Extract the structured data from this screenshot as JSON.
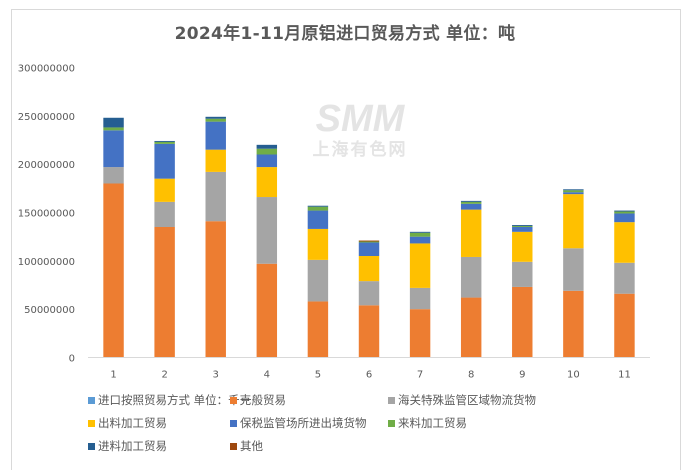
{
  "chart_data": {
    "type": "bar",
    "stacked": true,
    "title": "2024年1-11月原铝进口贸易方式 单位：吨",
    "watermark": {
      "en": "SMM",
      "cn": "上海有色网"
    },
    "xlabel": "",
    "ylabel": "",
    "ylim": [
      0,
      300000000
    ],
    "yticks": [
      0,
      50000000,
      100000000,
      150000000,
      200000000,
      250000000,
      300000000
    ],
    "ytick_labels": [
      "0",
      "50000000",
      "100000000",
      "150000000",
      "200000000",
      "250000000",
      "300000000"
    ],
    "grid": false,
    "legend_position": "bottom",
    "categories": [
      "1",
      "2",
      "3",
      "4",
      "5",
      "6",
      "7",
      "8",
      "9",
      "10",
      "11"
    ],
    "series": [
      {
        "name": "进口按照贸易方式 单位：千克",
        "color": "#5b9bd5",
        "values": [
          0,
          0,
          0,
          0,
          0,
          0,
          0,
          0,
          0,
          0,
          0
        ]
      },
      {
        "name": "一般贸易",
        "color": "#ed7d31",
        "values": [
          180000000,
          135000000,
          141000000,
          97000000,
          58000000,
          54000000,
          50000000,
          62000000,
          73000000,
          69000000,
          66000000
        ]
      },
      {
        "name": "海关特殊监管区域物流货物",
        "color": "#a5a5a5",
        "values": [
          17000000,
          26000000,
          51000000,
          69000000,
          43000000,
          25000000,
          22000000,
          42000000,
          26000000,
          44000000,
          32000000
        ]
      },
      {
        "name": "出料加工贸易",
        "color": "#ffc000",
        "values": [
          0,
          24000000,
          23000000,
          31000000,
          32000000,
          26000000,
          46000000,
          49000000,
          31000000,
          56000000,
          42000000
        ]
      },
      {
        "name": "保税监管场所进出境货物",
        "color": "#4472c4",
        "values": [
          38000000,
          36000000,
          29000000,
          13000000,
          19000000,
          14000000,
          7000000,
          6000000,
          5000000,
          2000000,
          9000000
        ]
      },
      {
        "name": "来料加工贸易",
        "color": "#70ad47",
        "values": [
          3000000,
          2000000,
          3000000,
          6000000,
          4000000,
          1000000,
          4000000,
          2000000,
          1000000,
          2000000,
          2000000
        ]
      },
      {
        "name": "进料加工贸易",
        "color": "#255e91",
        "values": [
          10000000,
          1000000,
          2000000,
          4000000,
          1000000,
          0,
          1000000,
          1000000,
          1000000,
          1000000,
          1000000
        ]
      },
      {
        "name": "其他",
        "color": "#9e480e",
        "values": [
          0,
          0,
          0,
          0,
          0,
          1000000,
          0,
          0,
          0,
          0,
          0
        ]
      }
    ]
  }
}
